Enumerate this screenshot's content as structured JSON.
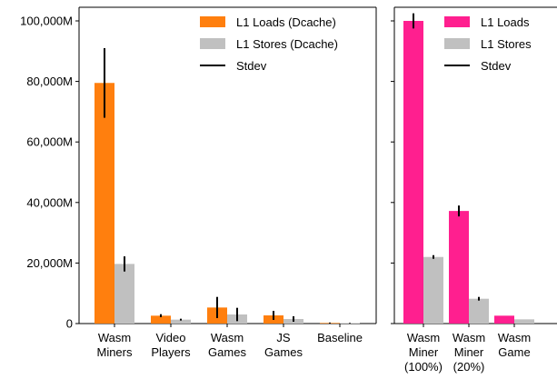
{
  "chart_data": [
    {
      "type": "bar",
      "categories": [
        "Wasm\nMiners",
        "Video\nPlayers",
        "Wasm\nGames",
        "JS\nGames",
        "Baseline"
      ],
      "series": [
        {
          "name": "L1 Loads (Dcache)",
          "color": "#ff7f0e",
          "values": [
            79500,
            2600,
            5300,
            2700,
            200
          ],
          "stdev": [
            11500,
            500,
            3500,
            1500,
            150
          ]
        },
        {
          "name": "L1 Stores (Dcache)",
          "color": "#c0c0c0",
          "values": [
            19700,
            1300,
            3000,
            1500,
            150
          ],
          "stdev": [
            2500,
            300,
            2200,
            900,
            100
          ]
        }
      ],
      "error_label": "Stdev",
      "yticks": [
        0,
        20000,
        40000,
        60000,
        80000,
        100000
      ],
      "ytick_labels": [
        "0",
        "20,000M",
        "40,000M",
        "60,000M",
        "80,000M",
        "100,000M"
      ],
      "ylim": [
        0,
        104500
      ],
      "legend": "top-right",
      "grid": false
    },
    {
      "type": "bar",
      "categories": [
        "Wasm\nMiner\n(100%)",
        "Wasm\nMiner\n(20%)",
        "Wasm\nGame"
      ],
      "series": [
        {
          "name": "L1 Loads",
          "color": "#ff1f8f",
          "values": [
            100000,
            37200,
            2600
          ],
          "stdev": [
            2500,
            1800,
            0
          ]
        },
        {
          "name": "L1 Stores",
          "color": "#c0c0c0",
          "values": [
            22000,
            8200,
            1400
          ],
          "stdev": [
            600,
            600,
            0
          ]
        }
      ],
      "error_label": "Stdev",
      "yticks": [
        0,
        20000,
        40000,
        60000,
        80000,
        100000
      ],
      "ylim": [
        0,
        104500
      ],
      "legend": "top-right",
      "grid": false
    }
  ]
}
